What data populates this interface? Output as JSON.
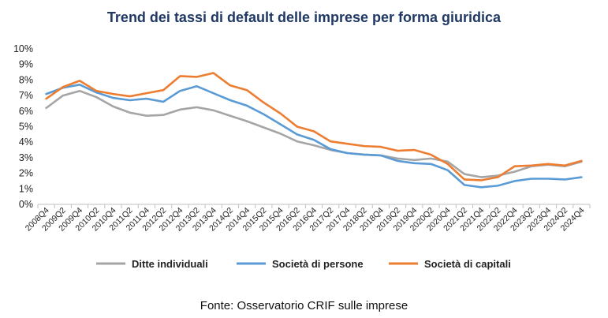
{
  "colors": {
    "title": "#1f3864",
    "ditte_individuali": "#a5a5a5",
    "societa_di_persone": "#5b9bd5",
    "societa_di_capitali": "#ed7d31",
    "axis": "#bfbfbf"
  },
  "chart_data": {
    "type": "line",
    "title": "Trend dei tassi di default delle imprese per forma giuridica",
    "xlabel": "",
    "ylabel": "",
    "ylim": [
      0,
      10
    ],
    "yticks": [
      "0%",
      "1%",
      "2%",
      "3%",
      "4%",
      "5%",
      "6%",
      "7%",
      "8%",
      "9%",
      "10%"
    ],
    "grid": false,
    "legend_position": "bottom",
    "x": [
      "2008Q4",
      "2009Q2",
      "2009Q4",
      "2010Q2",
      "2010Q4",
      "2011Q2",
      "2011Q4",
      "2012Q2",
      "2012Q4",
      "2013Q2",
      "2013Q4",
      "2014Q2",
      "2014Q4",
      "2015Q2",
      "2015Q4",
      "2016Q2",
      "2016Q4",
      "2017Q2",
      "2017Q4",
      "2018Q2",
      "2018Q4",
      "2019Q2",
      "2019Q4",
      "2020Q2",
      "2020Q4",
      "2021Q2",
      "2021Q4",
      "2022Q2",
      "2022Q4",
      "2023Q2",
      "2023Q4",
      "2024Q2",
      "2024Q4"
    ],
    "series": [
      {
        "name": "Ditte individuali",
        "color": "#a5a5a5",
        "values": [
          6.2,
          7.0,
          7.3,
          6.9,
          6.3,
          5.9,
          5.7,
          5.75,
          6.1,
          6.25,
          6.05,
          5.7,
          5.35,
          4.95,
          4.55,
          4.05,
          3.8,
          3.5,
          3.3,
          3.2,
          3.15,
          2.95,
          2.85,
          2.95,
          2.75,
          1.95,
          1.75,
          1.85,
          2.1,
          2.45,
          2.55,
          2.45,
          2.75
        ]
      },
      {
        "name": "Società di persone",
        "color": "#5b9bd5",
        "values": [
          7.1,
          7.5,
          7.7,
          7.2,
          6.85,
          6.7,
          6.8,
          6.6,
          7.3,
          7.6,
          7.15,
          6.7,
          6.35,
          5.8,
          5.15,
          4.5,
          4.15,
          3.55,
          3.3,
          3.2,
          3.15,
          2.8,
          2.65,
          2.6,
          2.2,
          1.25,
          1.1,
          1.2,
          1.5,
          1.65,
          1.65,
          1.6,
          1.75
        ]
      },
      {
        "name": "Società di capitali",
        "color": "#ed7d31",
        "values": [
          6.8,
          7.55,
          7.95,
          7.3,
          7.1,
          6.95,
          7.15,
          7.35,
          8.25,
          8.2,
          8.45,
          7.65,
          7.35,
          6.55,
          5.85,
          5.0,
          4.7,
          4.05,
          3.9,
          3.75,
          3.7,
          3.45,
          3.5,
          3.2,
          2.6,
          1.6,
          1.55,
          1.75,
          2.45,
          2.5,
          2.6,
          2.5,
          2.8
        ]
      }
    ],
    "source": "Fonte: Osservatorio CRIF sulle imprese"
  }
}
